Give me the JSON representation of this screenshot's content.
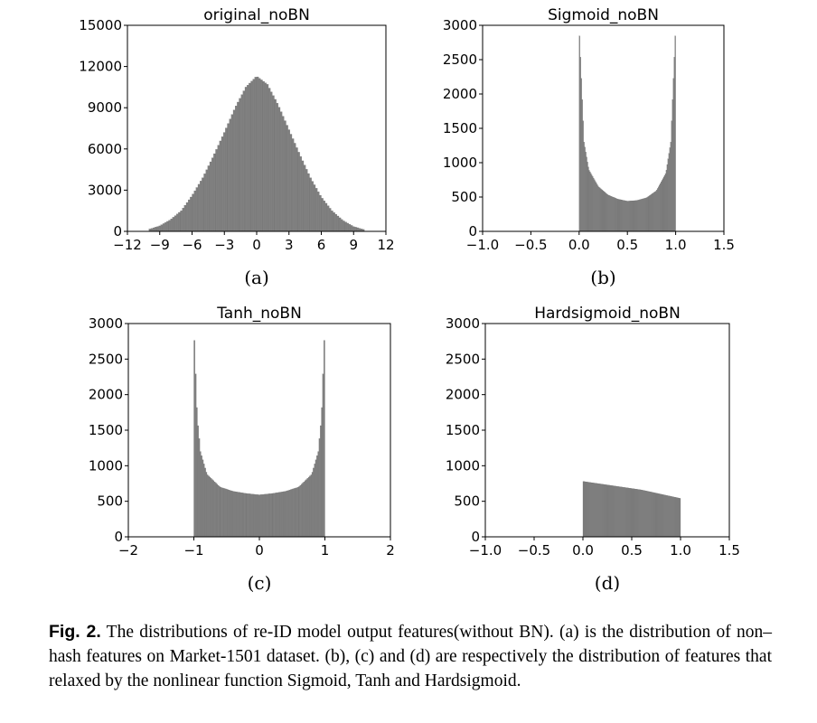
{
  "chart_data": [
    {
      "type": "bar",
      "title": "original_noBN",
      "sub_label": "(a)",
      "xlim": [
        -12,
        12
      ],
      "ylim": [
        0,
        15000
      ],
      "xticks": [
        "−12",
        "−9",
        "−6",
        "−3",
        "0",
        "3",
        "6",
        "9",
        "12"
      ],
      "yticks": [
        "0",
        "3000",
        "6000",
        "9000",
        "12000",
        "15000"
      ],
      "bar_color": "#808080",
      "x": [
        -10,
        -9,
        -8,
        -7,
        -6,
        -5,
        -4,
        -3,
        -2,
        -1,
        0,
        1,
        2,
        3,
        4,
        5,
        6,
        7,
        8,
        9,
        10
      ],
      "values": [
        150,
        400,
        850,
        1500,
        2600,
        3900,
        5500,
        7200,
        9000,
        10500,
        11300,
        10700,
        9200,
        7400,
        5600,
        3900,
        2500,
        1500,
        800,
        350,
        120
      ]
    },
    {
      "type": "bar",
      "title": "Sigmoid_noBN",
      "sub_label": "(b)",
      "xlim": [
        -1.0,
        1.5
      ],
      "ylim": [
        0,
        3000
      ],
      "xticks": [
        "−1.0",
        "−0.5",
        "0.0",
        "0.5",
        "1.0",
        "1.5"
      ],
      "yticks": [
        "0",
        "500",
        "1000",
        "1500",
        "2000",
        "2500",
        "3000"
      ],
      "bar_color": "#808080",
      "x": [
        0.0,
        0.05,
        0.1,
        0.2,
        0.3,
        0.4,
        0.5,
        0.6,
        0.7,
        0.8,
        0.9,
        0.95,
        1.0
      ],
      "values": [
        3000,
        1300,
        900,
        650,
        530,
        470,
        440,
        450,
        490,
        590,
        850,
        1300,
        3000
      ]
    },
    {
      "type": "bar",
      "title": "Tanh_noBN",
      "sub_label": "(c)",
      "xlim": [
        -2,
        2
      ],
      "ylim": [
        0,
        3000
      ],
      "xticks": [
        "−2",
        "−1",
        "0",
        "1",
        "2"
      ],
      "yticks": [
        "0",
        "500",
        "1000",
        "1500",
        "2000",
        "2500",
        "3000"
      ],
      "bar_color": "#808080",
      "x": [
        -1.0,
        -0.95,
        -0.9,
        -0.8,
        -0.6,
        -0.4,
        -0.2,
        0.0,
        0.2,
        0.4,
        0.6,
        0.8,
        0.9,
        0.95,
        1.0
      ],
      "values": [
        3000,
        1700,
        1200,
        880,
        700,
        640,
        610,
        590,
        610,
        640,
        700,
        880,
        1200,
        1700,
        3000
      ]
    },
    {
      "type": "bar",
      "title": "Hardsigmoid_noBN",
      "sub_label": "(d)",
      "xlim": [
        -1.0,
        1.5
      ],
      "ylim": [
        0,
        3000
      ],
      "xticks": [
        "−1.0",
        "−0.5",
        "0.0",
        "0.5",
        "1.0",
        "1.5"
      ],
      "yticks": [
        "0",
        "500",
        "1000",
        "1500",
        "2000",
        "2500",
        "3000"
      ],
      "bar_color": "#808080",
      "x": [
        0.0,
        0.1,
        0.2,
        0.3,
        0.4,
        0.5,
        0.6,
        0.7,
        0.8,
        0.9,
        1.0
      ],
      "values": [
        780,
        760,
        740,
        720,
        700,
        680,
        660,
        630,
        600,
        570,
        540
      ]
    }
  ],
  "caption": {
    "label": "Fig. 2.",
    "text": " The distributions of re-ID model output features(without BN). (a) is the distribution of non–hash features on Market-1501 dataset. (b), (c) and (d) are respectively the distribution of features that relaxed by the nonlinear function Sigmoid, Tanh and Hardsigmoid."
  }
}
